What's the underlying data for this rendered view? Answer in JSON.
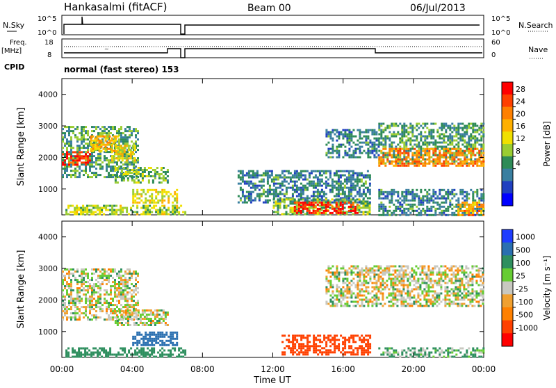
{
  "header": {
    "station": "Hankasalmi (fitACF)",
    "beam": "Beam 00",
    "date": "06/Jul/2013"
  },
  "top_panels": {
    "nsky_label": "N.Sky",
    "nsky_ticks": [
      "10^5",
      "10^0"
    ],
    "nsearch_label": "N.Search",
    "nsearch_ticks": [
      "10^5",
      "10^0"
    ],
    "freq_label": "Freq.",
    "freq_unit": "[MHz]",
    "freq_ticks": [
      "18",
      "8"
    ],
    "nave_label": "Nave",
    "nave_ticks": [
      "60",
      "0"
    ],
    "cpid_label": "CPID",
    "cpid_text": "normal (fast stereo) 153"
  },
  "axes": {
    "ylabel": "Slant Range [km]",
    "xlabel": "Time UT",
    "y_ticks": [
      "4000",
      "3000",
      "2000",
      "1000"
    ],
    "x_ticks": [
      "00:00",
      "04:00",
      "08:00",
      "12:00",
      "16:00",
      "20:00",
      "00:00"
    ]
  },
  "colorbars": {
    "power": {
      "label": "Power [dB]",
      "ticks": [
        "28",
        "24",
        "20",
        "16",
        "12",
        "8",
        "4"
      ],
      "colors": [
        "#ff0000",
        "#ff4000",
        "#ff8000",
        "#ffb000",
        "#f0e000",
        "#9acd32",
        "#2e8b57",
        "#3a7fa0",
        "#2040c0",
        "#0000ff"
      ]
    },
    "velocity": {
      "label": "Velocity [m s⁻¹]",
      "ticks": [
        "1000",
        "500",
        "100",
        "25",
        "-25",
        "-100",
        "-500",
        "-1000"
      ],
      "colors": [
        "#1e3cff",
        "#2a6fb0",
        "#2f8f5f",
        "#66cc33",
        "#c8c8c0",
        "#f0a030",
        "#ff8000",
        "#ff4000",
        "#ff0000"
      ]
    }
  },
  "chart_data": [
    {
      "type": "heatmap",
      "name": "power",
      "x_range_hours": [
        0,
        24
      ],
      "y_range_km": [
        180,
        4500
      ],
      "regions": [
        {
          "t0": 0.0,
          "t1": 4.3,
          "r0": 1400,
          "r1": 3000,
          "value": 10
        },
        {
          "t0": 0.0,
          "t1": 1.6,
          "r0": 1800,
          "r1": 2200,
          "value": 26
        },
        {
          "t0": 1.6,
          "t1": 3.2,
          "r0": 2200,
          "r1": 2700,
          "value": 18
        },
        {
          "t0": 2.8,
          "t1": 4.2,
          "r0": 1900,
          "r1": 2400,
          "value": 16
        },
        {
          "t0": 3.0,
          "t1": 6.0,
          "r0": 1200,
          "r1": 1700,
          "value": 12
        },
        {
          "t0": 0.2,
          "t1": 7.0,
          "r0": 200,
          "r1": 500,
          "value": 14
        },
        {
          "t0": 4.0,
          "t1": 6.5,
          "r0": 600,
          "r1": 1000,
          "value": 16
        },
        {
          "t0": 10.0,
          "t1": 17.5,
          "r0": 600,
          "r1": 1600,
          "value": 8
        },
        {
          "t0": 12.0,
          "t1": 17.5,
          "r0": 200,
          "r1": 700,
          "value": 12
        },
        {
          "t0": 13.2,
          "t1": 16.8,
          "r0": 250,
          "r1": 600,
          "value": 26
        },
        {
          "t0": 15.0,
          "t1": 18.0,
          "r0": 2000,
          "r1": 2900,
          "value": 8
        },
        {
          "t0": 18.0,
          "t1": 24.0,
          "r0": 1800,
          "r1": 3100,
          "value": 10
        },
        {
          "t0": 18.0,
          "t1": 24.0,
          "r0": 1750,
          "r1": 2300,
          "value": 22
        },
        {
          "t0": 18.0,
          "t1": 24.0,
          "r0": 200,
          "r1": 1000,
          "value": 8
        },
        {
          "t0": 22.5,
          "t1": 24.0,
          "r0": 200,
          "r1": 600,
          "value": 20
        }
      ]
    },
    {
      "type": "heatmap",
      "name": "velocity",
      "x_range_hours": [
        0,
        24
      ],
      "y_range_km": [
        180,
        4500
      ],
      "regions": [
        {
          "t0": 0.0,
          "t1": 4.3,
          "r0": 1400,
          "r1": 3000,
          "value": 0
        },
        {
          "t0": 3.0,
          "t1": 6.0,
          "r0": 1200,
          "r1": 1700,
          "value": 0
        },
        {
          "t0": 0.2,
          "t1": 7.0,
          "r0": 200,
          "r1": 500,
          "value": 150
        },
        {
          "t0": 4.0,
          "t1": 6.5,
          "r0": 600,
          "r1": 1000,
          "value": 600
        },
        {
          "t0": 12.5,
          "t1": 17.5,
          "r0": 250,
          "r1": 900,
          "value": -400
        },
        {
          "t0": 15.0,
          "t1": 24.0,
          "r0": 1800,
          "r1": 3100,
          "value": 0
        },
        {
          "t0": 18.0,
          "t1": 24.0,
          "r0": 200,
          "r1": 500,
          "value": 60
        }
      ]
    }
  ]
}
